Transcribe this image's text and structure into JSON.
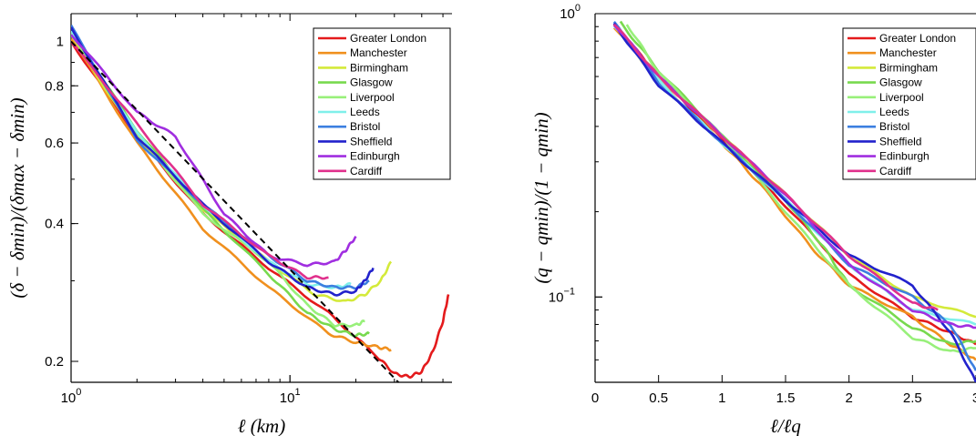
{
  "chart_data": [
    {
      "type": "line",
      "xscale": "log",
      "yscale": "log",
      "xlabel": "ℓ (km)",
      "ylabel": "(δ − δmin)/(δmax − δmin)",
      "xlim": [
        1,
        55
      ],
      "ylim": [
        0.18,
        1.15
      ],
      "xticks": [
        {
          "v": 1,
          "label": "10",
          "exp": "0"
        },
        {
          "v": 10,
          "label": "10",
          "exp": "1"
        }
      ],
      "yticks": [
        {
          "v": 0.2,
          "label": "0.2"
        },
        {
          "v": 0.4,
          "label": "0.4"
        },
        {
          "v": 0.6,
          "label": "0.6"
        },
        {
          "v": 0.8,
          "label": "0.8"
        },
        {
          "v": 1,
          "label": "1"
        }
      ],
      "legend_position": "top-right",
      "series": [
        {
          "name": "Greater London",
          "color": "#e41a1c",
          "points": [
            [
              1,
              1.0
            ],
            [
              2,
              0.62
            ],
            [
              4,
              0.42
            ],
            [
              8,
              0.32
            ],
            [
              15,
              0.255
            ],
            [
              25,
              0.205
            ],
            [
              30,
              0.188
            ],
            [
              35,
              0.185
            ],
            [
              40,
              0.19
            ],
            [
              45,
              0.21
            ],
            [
              50,
              0.245
            ],
            [
              53,
              0.28
            ]
          ]
        },
        {
          "name": "Manchester",
          "color": "#f0901e",
          "points": [
            [
              1,
              1.02
            ],
            [
              2,
              0.6
            ],
            [
              4,
              0.39
            ],
            [
              8,
              0.29
            ],
            [
              15,
              0.23
            ],
            [
              20,
              0.22
            ],
            [
              25,
              0.215
            ],
            [
              29,
              0.212
            ]
          ]
        },
        {
          "name": "Birmingham",
          "color": "#d4ea3a",
          "points": [
            [
              1,
              1.03
            ],
            [
              2,
              0.62
            ],
            [
              4,
              0.43
            ],
            [
              8,
              0.33
            ],
            [
              13,
              0.28
            ],
            [
              18,
              0.27
            ],
            [
              22,
              0.28
            ],
            [
              26,
              0.3
            ],
            [
              29,
              0.33
            ]
          ]
        },
        {
          "name": "Glasgow",
          "color": "#78d94e",
          "points": [
            [
              1,
              1.04
            ],
            [
              2,
              0.64
            ],
            [
              4,
              0.43
            ],
            [
              8,
              0.31
            ],
            [
              12,
              0.255
            ],
            [
              16,
              0.235
            ],
            [
              20,
              0.228
            ],
            [
              23,
              0.23
            ]
          ]
        },
        {
          "name": "Liverpool",
          "color": "#98f07a",
          "points": [
            [
              1,
              1.05
            ],
            [
              2,
              0.63
            ],
            [
              4,
              0.42
            ],
            [
              8,
              0.33
            ],
            [
              12,
              0.265
            ],
            [
              16,
              0.24
            ],
            [
              20,
              0.24
            ],
            [
              22,
              0.245
            ]
          ]
        },
        {
          "name": "Leeds",
          "color": "#7ff0ea",
          "points": [
            [
              1,
              1.06
            ],
            [
              2,
              0.63
            ],
            [
              4,
              0.44
            ],
            [
              8,
              0.33
            ],
            [
              12,
              0.295
            ],
            [
              16,
              0.29
            ],
            [
              19,
              0.295
            ]
          ]
        },
        {
          "name": "Bristol",
          "color": "#3c7fe0",
          "points": [
            [
              1,
              1.08
            ],
            [
              2,
              0.61
            ],
            [
              4,
              0.44
            ],
            [
              8,
              0.34
            ],
            [
              12,
              0.3
            ],
            [
              16,
              0.29
            ],
            [
              20,
              0.29
            ],
            [
              23,
              0.3
            ]
          ]
        },
        {
          "name": "Sheffield",
          "color": "#2222cc",
          "points": [
            [
              1,
              1.07
            ],
            [
              2,
              0.62
            ],
            [
              4,
              0.44
            ],
            [
              8,
              0.33
            ],
            [
              12,
              0.29
            ],
            [
              16,
              0.28
            ],
            [
              20,
              0.285
            ],
            [
              22,
              0.3
            ],
            [
              24,
              0.32
            ]
          ]
        },
        {
          "name": "Edinburgh",
          "color": "#a02ee0",
          "points": [
            [
              1,
              1.04
            ],
            [
              2,
              0.7
            ],
            [
              3,
              0.62
            ],
            [
              5,
              0.42
            ],
            [
              8,
              0.34
            ],
            [
              12,
              0.325
            ],
            [
              16,
              0.33
            ],
            [
              18,
              0.35
            ],
            [
              20,
              0.375
            ]
          ]
        },
        {
          "name": "Cardiff",
          "color": "#e0308c",
          "points": [
            [
              1,
              1.0
            ],
            [
              2,
              0.66
            ],
            [
              4,
              0.44
            ],
            [
              8,
              0.34
            ],
            [
              12,
              0.305
            ],
            [
              15,
              0.305
            ]
          ]
        }
      ],
      "fit_line": {
        "style": "dashed",
        "color": "#000",
        "points": [
          [
            1,
            1.0
          ],
          [
            32,
            0.178
          ]
        ]
      }
    },
    {
      "type": "line",
      "xscale": "linear",
      "yscale": "log",
      "xlabel": "ℓ/ℓq",
      "ylabel": "(q − qmin)/(1 − qmin)",
      "xlim": [
        0,
        3
      ],
      "ylim": [
        0.05,
        1.0
      ],
      "xticks": [
        {
          "v": 0,
          "label": "0"
        },
        {
          "v": 0.5,
          "label": "0.5"
        },
        {
          "v": 1,
          "label": "1"
        },
        {
          "v": 1.5,
          "label": "1.5"
        },
        {
          "v": 2,
          "label": "2"
        },
        {
          "v": 2.5,
          "label": "2.5"
        },
        {
          "v": 3,
          "label": "3"
        }
      ],
      "yticks": [
        {
          "v": 1,
          "label": "10",
          "exp": "0"
        },
        {
          "v": 0.1,
          "label": "10",
          "exp": "−1"
        }
      ],
      "legend_position": "top-right",
      "series": [
        {
          "name": "Greater London",
          "color": "#e41a1c",
          "points": [
            [
              0.15,
              0.92
            ],
            [
              0.5,
              0.6
            ],
            [
              1,
              0.36
            ],
            [
              1.5,
              0.21
            ],
            [
              2,
              0.12
            ],
            [
              2.5,
              0.085
            ],
            [
              2.8,
              0.075
            ],
            [
              3,
              0.068
            ]
          ]
        },
        {
          "name": "Manchester",
          "color": "#f0901e",
          "points": [
            [
              0.15,
              0.9
            ],
            [
              0.5,
              0.58
            ],
            [
              1,
              0.35
            ],
            [
              1.3,
              0.25
            ],
            [
              1.7,
              0.15
            ],
            [
              2,
              0.11
            ],
            [
              2.5,
              0.085
            ],
            [
              2.8,
              0.068
            ],
            [
              3,
              0.06
            ]
          ]
        },
        {
          "name": "Birmingham",
          "color": "#d4ea3a",
          "points": [
            [
              0.15,
              0.91
            ],
            [
              0.5,
              0.6
            ],
            [
              1,
              0.37
            ],
            [
              1.5,
              0.23
            ],
            [
              2,
              0.14
            ],
            [
              2.5,
              0.1
            ],
            [
              3,
              0.085
            ]
          ]
        },
        {
          "name": "Glasgow",
          "color": "#78d94e",
          "points": [
            [
              0.2,
              0.93
            ],
            [
              0.5,
              0.63
            ],
            [
              1,
              0.37
            ],
            [
              1.5,
              0.22
            ],
            [
              1.8,
              0.15
            ],
            [
              2,
              0.11
            ],
            [
              2.5,
              0.078
            ],
            [
              2.8,
              0.068
            ],
            [
              3,
              0.07
            ]
          ]
        },
        {
          "name": "Liverpool",
          "color": "#98f07a",
          "points": [
            [
              0.25,
              0.92
            ],
            [
              0.5,
              0.62
            ],
            [
              1,
              0.37
            ],
            [
              1.5,
              0.2
            ],
            [
              2,
              0.11
            ],
            [
              2.5,
              0.072
            ],
            [
              2.8,
              0.064
            ],
            [
              3,
              0.066
            ]
          ]
        },
        {
          "name": "Leeds",
          "color": "#7ff0ea",
          "points": [
            [
              0.15,
              0.91
            ],
            [
              0.5,
              0.58
            ],
            [
              1,
              0.35
            ],
            [
              1.5,
              0.22
            ],
            [
              2,
              0.13
            ],
            [
              2.5,
              0.09
            ],
            [
              3,
              0.08
            ]
          ]
        },
        {
          "name": "Bristol",
          "color": "#3c7fe0",
          "points": [
            [
              0.15,
              0.93
            ],
            [
              0.5,
              0.57
            ],
            [
              1,
              0.35
            ],
            [
              1.5,
              0.22
            ],
            [
              2,
              0.13
            ],
            [
              2.5,
              0.1
            ],
            [
              2.8,
              0.08
            ],
            [
              3,
              0.055
            ]
          ]
        },
        {
          "name": "Sheffield",
          "color": "#2222cc",
          "points": [
            [
              0.15,
              0.92
            ],
            [
              0.5,
              0.56
            ],
            [
              1,
              0.35
            ],
            [
              1.5,
              0.22
            ],
            [
              2,
              0.14
            ],
            [
              2.5,
              0.11
            ],
            [
              2.8,
              0.075
            ],
            [
              3,
              0.05
            ]
          ]
        },
        {
          "name": "Edinburgh",
          "color": "#a02ee0",
          "points": [
            [
              0.15,
              0.92
            ],
            [
              0.5,
              0.6
            ],
            [
              1,
              0.37
            ],
            [
              1.5,
              0.23
            ],
            [
              2,
              0.13
            ],
            [
              2.5,
              0.09
            ],
            [
              2.8,
              0.08
            ],
            [
              3,
              0.078
            ]
          ]
        },
        {
          "name": "Cardiff",
          "color": "#e0308c",
          "points": [
            [
              0.15,
              0.92
            ],
            [
              0.5,
              0.6
            ],
            [
              1,
              0.37
            ],
            [
              1.5,
              0.23
            ],
            [
              2,
              0.14
            ],
            [
              2.5,
              0.095
            ],
            [
              2.7,
              0.09
            ]
          ]
        }
      ]
    }
  ]
}
